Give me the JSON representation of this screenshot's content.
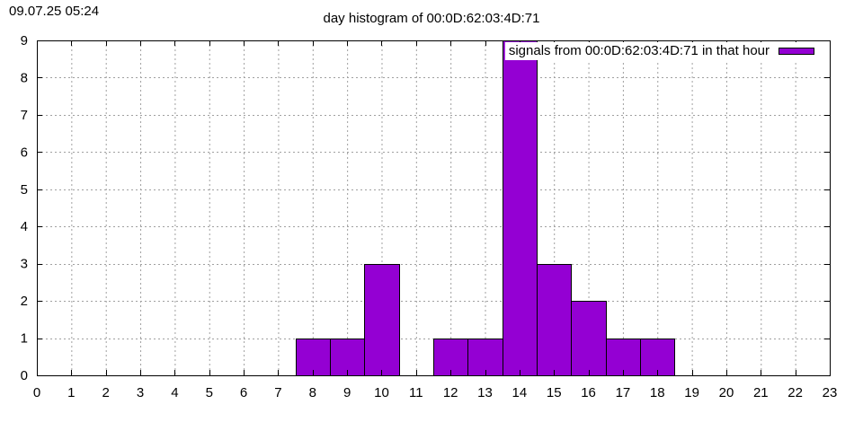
{
  "timestamp": "09.07.25 05:24",
  "colors": {
    "bar": "#9400d3",
    "grid": "#a0a0a0",
    "axis": "#000000",
    "background": "#ffffff"
  },
  "chart_data": {
    "type": "bar",
    "title": "day histogram of 00:0D:62:03:4D:71",
    "xlabel": "",
    "ylabel": "",
    "xlim": [
      0,
      23
    ],
    "ylim": [
      0,
      9
    ],
    "x_ticks": [
      0,
      1,
      2,
      3,
      4,
      5,
      6,
      7,
      8,
      9,
      10,
      11,
      12,
      13,
      14,
      15,
      16,
      17,
      18,
      19,
      20,
      21,
      22,
      23
    ],
    "y_ticks": [
      0,
      1,
      2,
      3,
      4,
      5,
      6,
      7,
      8,
      9
    ],
    "grid": true,
    "legend_position": "top-right",
    "series": [
      {
        "name": "signals from 00:0D:62:03:4D:71 in that hour",
        "points": [
          {
            "x": 8,
            "y": 1
          },
          {
            "x": 9,
            "y": 1
          },
          {
            "x": 10,
            "y": 3
          },
          {
            "x": 12,
            "y": 1
          },
          {
            "x": 13,
            "y": 1
          },
          {
            "x": 14,
            "y": 9
          },
          {
            "x": 15,
            "y": 3
          },
          {
            "x": 16,
            "y": 2
          },
          {
            "x": 17,
            "y": 1
          },
          {
            "x": 18,
            "y": 1
          }
        ]
      }
    ]
  }
}
